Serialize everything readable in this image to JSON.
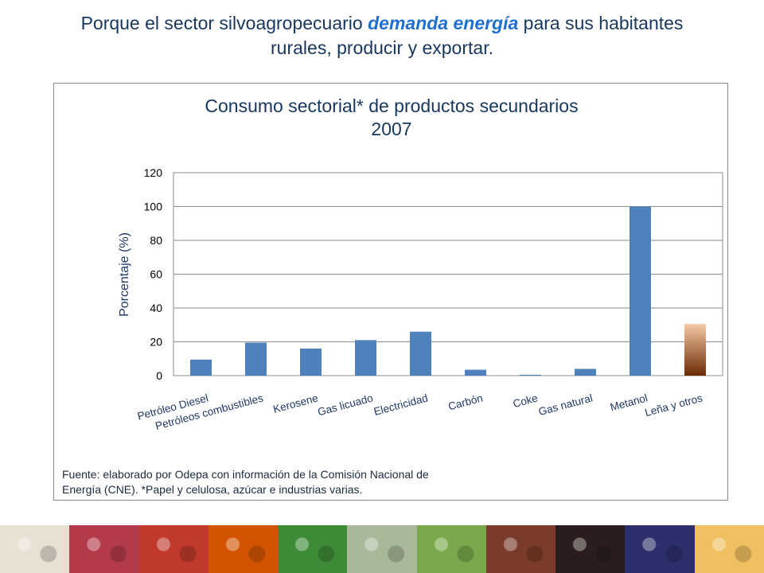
{
  "slide": {
    "title_part1": "Porque el sector silvoagropecuario ",
    "title_emphasis": "demanda energía",
    "title_part2": " para sus habitantes",
    "title_line2": "rurales, producir y exportar."
  },
  "chart_data": {
    "type": "bar",
    "title": "Consumo sectorial* de productos secundarios",
    "subtitle": "2007",
    "xlabel": "",
    "ylabel": "Porcentaje (%)",
    "ylim": [
      0,
      120
    ],
    "yticks": [
      0,
      20,
      40,
      60,
      80,
      100,
      120
    ],
    "grid": true,
    "legend": "none",
    "categories": [
      "Petróleo Diesel",
      "Petróleos combustibles",
      "Kerosene",
      "Gas licuado",
      "Electricidad",
      "Carbón",
      "Coke",
      "Gas natural",
      "Metanol",
      "Leña y otros"
    ],
    "values": [
      9.5,
      19.5,
      16,
      21,
      26,
      3.5,
      0.5,
      4,
      100,
      30.5
    ],
    "colors": {
      "bar": "#4f81bd",
      "highlight_top": "#f4c9a4",
      "highlight_bottom": "#6b2a05",
      "grid": "#8c8c8c",
      "text": "#1f3864"
    }
  },
  "source": {
    "line1": "Fuente: elaborado por Odepa con información de la Comisión Nacional de",
    "line2": "Energía (CNE).    *Papel y celulosa, azúcar e industrias varias."
  },
  "footer": {
    "images": [
      "eggs",
      "raspberries",
      "apples",
      "peppers",
      "lettuce",
      "sheep",
      "cow",
      "meat",
      "wine-bottles",
      "grapes",
      "cheese"
    ],
    "colors": [
      "#e8e0d2",
      "#b23a4a",
      "#c0392b",
      "#d35400",
      "#3d8b37",
      "#a8b89a",
      "#7aa84a",
      "#7a3b2a",
      "#2b1d1d",
      "#2c2f6b",
      "#f0c060"
    ]
  }
}
